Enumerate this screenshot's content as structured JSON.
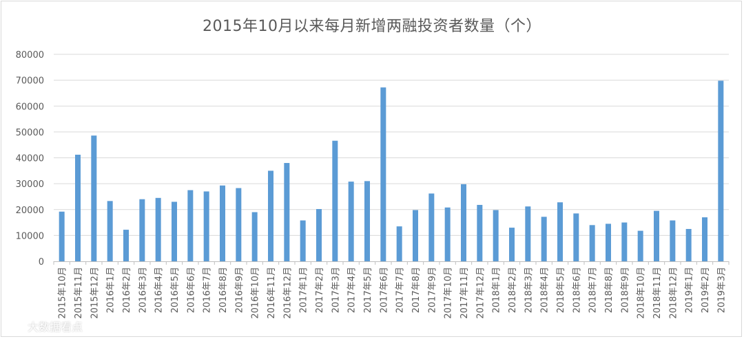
{
  "chart_data": {
    "type": "bar",
    "title": "2015年10月以来每月新增两融投资者数量（个）",
    "xlabel": "",
    "ylabel": "",
    "ylim": [
      0,
      80000
    ],
    "yticks": [
      0,
      10000,
      20000,
      30000,
      40000,
      50000,
      60000,
      70000,
      80000
    ],
    "grid": true,
    "legend": "none",
    "bar_color": "#5b9bd5",
    "categories": [
      "2015年10月",
      "2015年11月",
      "2015年12月",
      "2016年1月",
      "2016年2月",
      "2016年3月",
      "2016年4月",
      "2016年5月",
      "2016年6月",
      "2016年7月",
      "2016年8月",
      "2016年9月",
      "2016年10月",
      "2016年11月",
      "2016年12月",
      "2017年1月",
      "2017年2月",
      "2017年3月",
      "2017年4月",
      "2017年5月",
      "2017年6月",
      "2017年7月",
      "2017年8月",
      "2017年9月",
      "2017年10月",
      "2017年11月",
      "2017年12月",
      "2018年1月",
      "2018年2月",
      "2018年3月",
      "2018年4月",
      "2018年5月",
      "2018年6月",
      "2018年7月",
      "2018年8月",
      "2018年9月",
      "2018年10月",
      "2018年11月",
      "2018年12月",
      "2019年1月",
      "2019年2月",
      "2019年3月"
    ],
    "values": [
      19200,
      41200,
      48600,
      23300,
      12200,
      24000,
      24500,
      23000,
      27500,
      27000,
      29300,
      28300,
      19000,
      35000,
      38000,
      15800,
      20200,
      46600,
      30800,
      31000,
      67200,
      13500,
      19800,
      26200,
      20800,
      29800,
      21800,
      19800,
      13000,
      21200,
      17200,
      22800,
      18500,
      14000,
      14500,
      15000,
      11800,
      19500,
      15800,
      12500,
      17000,
      69800
    ]
  },
  "watermark": {
    "icon": "weibo-icon",
    "text": "大数据看点"
  }
}
